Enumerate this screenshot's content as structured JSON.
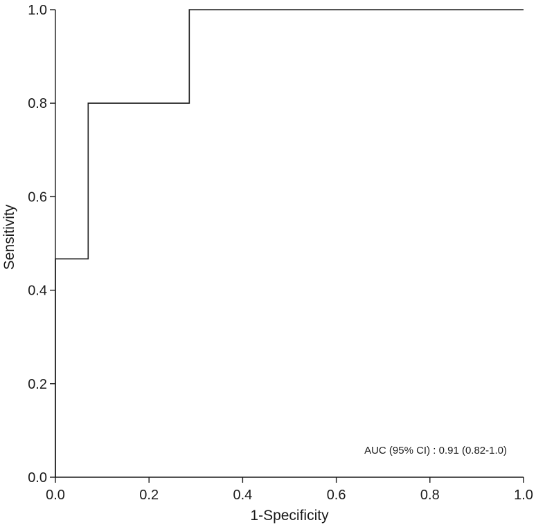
{
  "chart_data": {
    "type": "line",
    "title": "",
    "xlabel": "1-Specificity",
    "ylabel": "Sensitivity",
    "xlim": [
      0,
      1
    ],
    "ylim": [
      0,
      1
    ],
    "xticks": [
      "0.0",
      "0.2",
      "0.4",
      "0.6",
      "0.8",
      "1.0"
    ],
    "yticks": [
      "0.0",
      "0.2",
      "0.4",
      "0.6",
      "0.8",
      "1.0"
    ],
    "grid": false,
    "legend": "none",
    "series": [
      {
        "x": [
          0,
          0,
          0.07,
          0.07,
          0.286,
          0.286,
          1.0
        ],
        "y": [
          0,
          0.467,
          0.467,
          0.8,
          0.8,
          1.0,
          1.0
        ]
      }
    ],
    "annotation": "AUC (95% CI) : 0.91 (0.82-1.0)",
    "line_color": "#1a1a1a"
  }
}
